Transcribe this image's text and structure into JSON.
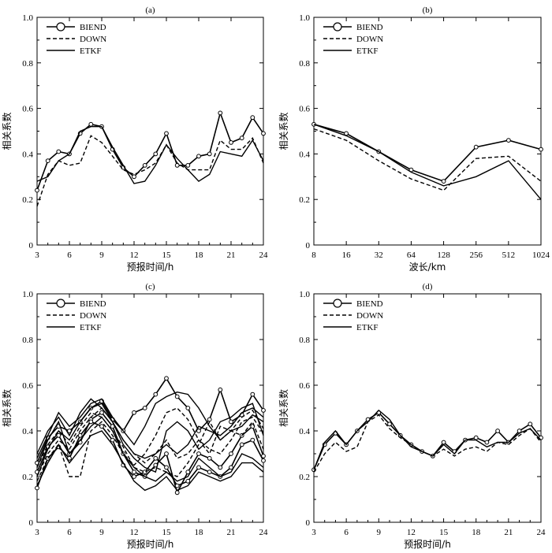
{
  "chart_data": [
    {
      "type": "line",
      "title": "(a)",
      "xlabel": "预报时间/h",
      "ylabel": "相关系数",
      "xlim": [
        3,
        24
      ],
      "ylim": [
        0,
        1.0
      ],
      "xticks": [
        "3",
        "6",
        "9",
        "12",
        "15",
        "18",
        "21",
        "24"
      ],
      "yticks": [
        "0",
        "0.2",
        "0.4",
        "0.6",
        "0.8",
        "1.0"
      ],
      "legend": [
        "BIEND",
        "DOWN",
        "ETKF"
      ],
      "x": [
        3,
        4,
        5,
        6,
        7,
        8,
        9,
        10,
        11,
        12,
        13,
        14,
        15,
        16,
        17,
        18,
        19,
        20,
        21,
        22,
        23,
        24
      ],
      "series": [
        {
          "name": "BIEND",
          "style": "circle",
          "values": [
            0.24,
            0.37,
            0.41,
            0.4,
            0.49,
            0.53,
            0.52,
            0.42,
            0.34,
            0.3,
            0.35,
            0.4,
            0.49,
            0.35,
            0.35,
            0.39,
            0.4,
            0.58,
            0.45,
            0.47,
            0.56,
            0.49
          ]
        },
        {
          "name": "DOWN",
          "style": "dashed",
          "values": [
            0.17,
            0.31,
            0.37,
            0.35,
            0.36,
            0.48,
            0.45,
            0.39,
            0.33,
            0.31,
            0.33,
            0.36,
            0.44,
            0.36,
            0.33,
            0.33,
            0.33,
            0.46,
            0.42,
            0.42,
            0.47,
            0.36
          ]
        },
        {
          "name": "ETKF",
          "style": "solid",
          "values": [
            0.28,
            0.3,
            0.37,
            0.4,
            0.5,
            0.52,
            0.52,
            0.43,
            0.35,
            0.27,
            0.28,
            0.35,
            0.44,
            0.38,
            0.33,
            0.28,
            0.31,
            0.41,
            0.4,
            0.39,
            0.46,
            0.37
          ]
        }
      ]
    },
    {
      "type": "line",
      "title": "(b)",
      "xlabel": "波长/km",
      "ylabel": "相关系数",
      "ylim": [
        0,
        1.0
      ],
      "categories": [
        "8",
        "16",
        "32",
        "64",
        "128",
        "256",
        "512",
        "1024"
      ],
      "yticks": [
        "0",
        "0.2",
        "0.4",
        "0.6",
        "0.8",
        "1.0"
      ],
      "legend": [
        "BIEND",
        "DOWN",
        "ETKF"
      ],
      "series": [
        {
          "name": "BIEND",
          "style": "circle",
          "values": [
            0.53,
            0.49,
            0.41,
            0.33,
            0.28,
            0.43,
            0.46,
            0.42
          ]
        },
        {
          "name": "DOWN",
          "style": "dashed",
          "values": [
            0.51,
            0.46,
            0.37,
            0.29,
            0.24,
            0.38,
            0.39,
            0.28
          ]
        },
        {
          "name": "ETKF",
          "style": "solid",
          "values": [
            0.53,
            0.48,
            0.41,
            0.32,
            0.26,
            0.3,
            0.37,
            0.2
          ]
        }
      ]
    },
    {
      "type": "line",
      "title": "(c)",
      "xlabel": "预报时间/h",
      "ylabel": "相关系数",
      "xlim": [
        3,
        24
      ],
      "ylim": [
        0,
        1.0
      ],
      "xticks": [
        "3",
        "6",
        "9",
        "12",
        "15",
        "18",
        "21",
        "24"
      ],
      "yticks": [
        "0",
        "0.2",
        "0.4",
        "0.6",
        "0.8",
        "1.0"
      ],
      "legend": [
        "BIEND",
        "DOWN",
        "ETKF"
      ],
      "x": [
        3,
        4,
        5,
        6,
        7,
        8,
        9,
        10,
        11,
        12,
        13,
        14,
        15,
        16,
        17,
        18,
        19,
        20,
        21,
        22,
        23,
        24
      ],
      "series": [
        {
          "name": "BIEND",
          "style": "circle",
          "values": [
            0.26,
            0.37,
            0.42,
            0.4,
            0.44,
            0.5,
            0.53,
            0.45,
            0.4,
            0.48,
            0.5,
            0.56,
            0.63,
            0.55,
            0.5,
            0.4,
            0.45,
            0.58,
            0.44,
            0.47,
            0.56,
            0.49
          ]
        },
        {
          "name": "BIEND",
          "style": "circle",
          "values": [
            0.22,
            0.33,
            0.38,
            0.3,
            0.35,
            0.45,
            0.48,
            0.42,
            0.3,
            0.22,
            0.2,
            0.25,
            0.3,
            0.13,
            0.22,
            0.3,
            0.28,
            0.24,
            0.3,
            0.38,
            0.42,
            0.29
          ]
        },
        {
          "name": "BIEND",
          "style": "circle",
          "values": [
            0.15,
            0.28,
            0.33,
            0.28,
            0.38,
            0.44,
            0.42,
            0.36,
            0.25,
            0.2,
            0.22,
            0.28,
            0.24,
            0.16,
            0.18,
            0.24,
            0.22,
            0.2,
            0.24,
            0.34,
            0.36,
            0.27
          ]
        },
        {
          "name": "DOWN",
          "style": "dashed",
          "values": [
            0.18,
            0.28,
            0.34,
            0.2,
            0.2,
            0.4,
            0.44,
            0.38,
            0.3,
            0.25,
            0.3,
            0.38,
            0.48,
            0.5,
            0.45,
            0.36,
            0.3,
            0.42,
            0.4,
            0.46,
            0.49,
            0.41
          ]
        },
        {
          "name": "DOWN",
          "style": "dashed",
          "values": [
            0.2,
            0.3,
            0.36,
            0.32,
            0.4,
            0.46,
            0.5,
            0.44,
            0.36,
            0.3,
            0.26,
            0.3,
            0.36,
            0.28,
            0.3,
            0.36,
            0.32,
            0.3,
            0.36,
            0.44,
            0.46,
            0.39
          ]
        },
        {
          "name": "DOWN",
          "style": "dashed",
          "values": [
            0.24,
            0.34,
            0.4,
            0.34,
            0.42,
            0.48,
            0.46,
            0.4,
            0.33,
            0.24,
            0.22,
            0.24,
            0.22,
            0.2,
            0.26,
            0.34,
            0.44,
            0.36,
            0.4,
            0.38,
            0.44,
            0.32
          ]
        },
        {
          "name": "ETKF",
          "style": "solid",
          "values": [
            0.28,
            0.38,
            0.48,
            0.42,
            0.46,
            0.52,
            0.54,
            0.46,
            0.4,
            0.34,
            0.42,
            0.52,
            0.55,
            0.57,
            0.56,
            0.5,
            0.42,
            0.36,
            0.4,
            0.42,
            0.47,
            0.44
          ]
        },
        {
          "name": "ETKF",
          "style": "solid",
          "values": [
            0.2,
            0.32,
            0.4,
            0.36,
            0.44,
            0.5,
            0.52,
            0.44,
            0.34,
            0.28,
            0.24,
            0.22,
            0.4,
            0.44,
            0.4,
            0.32,
            0.36,
            0.44,
            0.46,
            0.5,
            0.52,
            0.38
          ]
        },
        {
          "name": "ETKF",
          "style": "solid",
          "values": [
            0.24,
            0.36,
            0.44,
            0.3,
            0.36,
            0.42,
            0.46,
            0.4,
            0.3,
            0.24,
            0.2,
            0.18,
            0.22,
            0.18,
            0.2,
            0.28,
            0.24,
            0.2,
            0.22,
            0.3,
            0.28,
            0.24
          ]
        },
        {
          "name": "ETKF",
          "style": "solid",
          "values": [
            0.3,
            0.4,
            0.46,
            0.38,
            0.48,
            0.54,
            0.5,
            0.44,
            0.36,
            0.3,
            0.28,
            0.3,
            0.34,
            0.3,
            0.34,
            0.42,
            0.4,
            0.38,
            0.42,
            0.48,
            0.5,
            0.46
          ]
        },
        {
          "name": "ETKF",
          "style": "solid",
          "values": [
            0.16,
            0.26,
            0.34,
            0.26,
            0.32,
            0.38,
            0.4,
            0.34,
            0.26,
            0.18,
            0.14,
            0.16,
            0.2,
            0.14,
            0.16,
            0.22,
            0.2,
            0.18,
            0.2,
            0.26,
            0.26,
            0.22
          ]
        }
      ]
    },
    {
      "type": "line",
      "title": "(d)",
      "xlabel": "预报时间/h",
      "ylabel": "相关系数",
      "xlim": [
        3,
        24
      ],
      "ylim": [
        0,
        1.0
      ],
      "xticks": [
        "3",
        "6",
        "9",
        "12",
        "15",
        "18",
        "21",
        "24"
      ],
      "yticks": [
        "0",
        "0.2",
        "0.4",
        "0.6",
        "0.8",
        "1.0"
      ],
      "legend": [
        "BIEND",
        "DOWN",
        "ETKF"
      ],
      "x": [
        3,
        4,
        5,
        6,
        7,
        8,
        9,
        10,
        11,
        12,
        13,
        14,
        15,
        16,
        17,
        18,
        19,
        20,
        21,
        22,
        23,
        24
      ],
      "series": [
        {
          "name": "BIEND",
          "style": "circle",
          "values": [
            0.23,
            0.34,
            0.39,
            0.34,
            0.4,
            0.45,
            0.48,
            0.43,
            0.38,
            0.34,
            0.31,
            0.29,
            0.35,
            0.31,
            0.36,
            0.37,
            0.35,
            0.4,
            0.35,
            0.4,
            0.43,
            0.37
          ]
        },
        {
          "name": "DOWN",
          "style": "dashed",
          "values": [
            0.22,
            0.3,
            0.35,
            0.31,
            0.33,
            0.44,
            0.47,
            0.41,
            0.37,
            0.34,
            0.31,
            0.29,
            0.32,
            0.29,
            0.32,
            0.33,
            0.31,
            0.35,
            0.34,
            0.38,
            0.41,
            0.35
          ]
        },
        {
          "name": "ETKF",
          "style": "solid",
          "values": [
            0.23,
            0.35,
            0.4,
            0.34,
            0.4,
            0.44,
            0.49,
            0.45,
            0.38,
            0.33,
            0.31,
            0.29,
            0.34,
            0.3,
            0.36,
            0.36,
            0.33,
            0.35,
            0.35,
            0.39,
            0.41,
            0.36
          ]
        }
      ]
    }
  ]
}
